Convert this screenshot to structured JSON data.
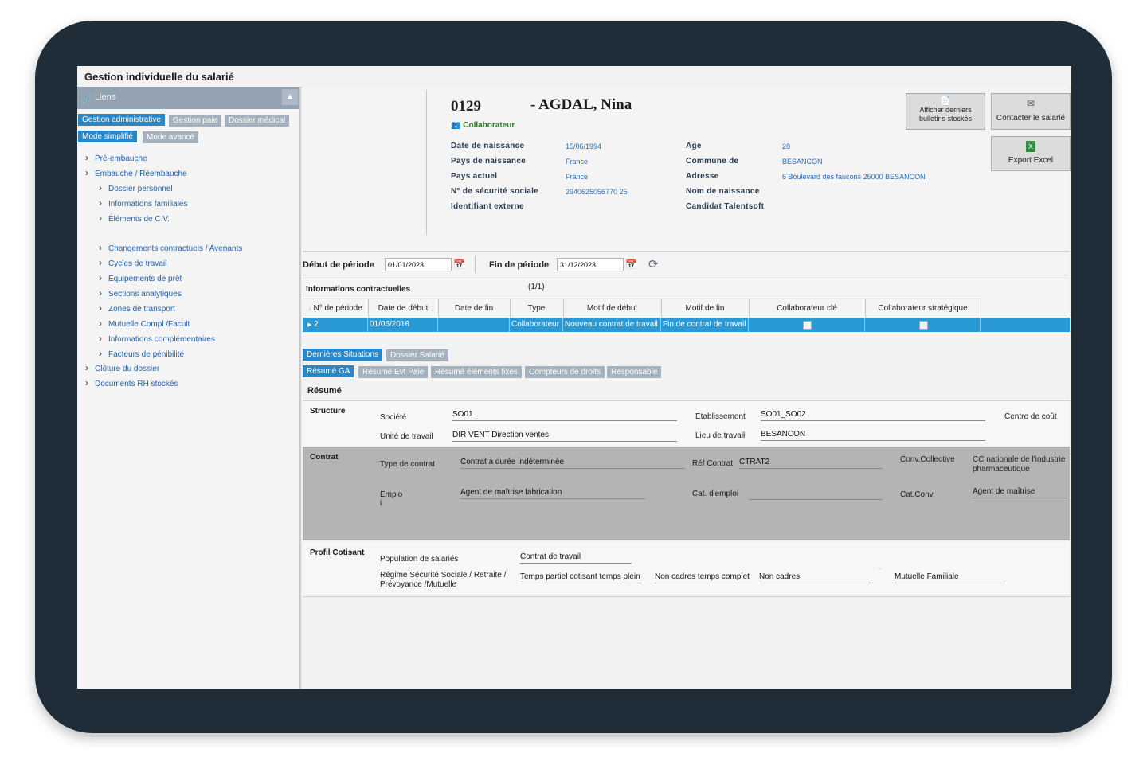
{
  "window": {
    "title": "Gestion individuelle du salarié"
  },
  "sidebar": {
    "header": "Liens",
    "tabs_row1": [
      "Gestion administrative",
      "Gestion paie",
      "Dossier médical"
    ],
    "tabs_row2": [
      "Mode simplifié",
      "Mode avancé"
    ],
    "items": [
      "Pré-embauche",
      "Embauche / Réembauche",
      "Dossier personnel",
      "Informations familiales",
      "Éléments de C.V.",
      "Changements contractuels / Avenants",
      "Cycles de travail",
      "Equipements de prêt",
      "Sections analytiques",
      "Zones de transport",
      "Mutuelle Compl /Facult",
      "Informations complémentaires",
      "Facteurs de pénibilité",
      "Clôture du dossier",
      "Documents RH stockés"
    ]
  },
  "employee": {
    "number": "0129",
    "name": "-  AGDAL, Nina",
    "role": "Collaborateur",
    "fields_left": [
      {
        "label": "Date de naissance",
        "value": "15/06/1994"
      },
      {
        "label": "Pays de naissance",
        "value": "France"
      },
      {
        "label": "Pays actuel",
        "value": "France"
      },
      {
        "label": "N° de sécurité sociale",
        "value": "2940625056770 25"
      },
      {
        "label": "Identifiant externe",
        "value": ""
      }
    ],
    "fields_right": [
      {
        "label": "Age",
        "value": "28"
      },
      {
        "label": "Commune de",
        "value": "BESANCON"
      },
      {
        "label": "Adresse",
        "value": "6 Boulevard des faucons 25000 BESANCON"
      },
      {
        "label": "Nom de naissance",
        "value": ""
      },
      {
        "label": "Candidat Talentsoft",
        "value": ""
      }
    ]
  },
  "actions": {
    "bulletins": "Afficher derniers bulletins stockés",
    "contact": "Contacter le salarié",
    "excel": "Export Excel"
  },
  "period": {
    "start_label": "Début de période",
    "start_value": "01/01/2023",
    "end_label": "Fin de période",
    "end_value": "31/12/2023"
  },
  "contract": {
    "title": "Informations contractuelles",
    "pager": "(1/1)",
    "columns": [
      "N° de période",
      "Date de début",
      "Date de fin",
      "Type",
      "Motif de début",
      "Motif de fin",
      "Collaborateur clé",
      "Collaborateur stratégique"
    ],
    "row": [
      "2",
      "01/06/2018",
      "",
      "Collaborateur",
      "Nouveau contrat de travail",
      "Fin de contrat de travail"
    ]
  },
  "tabs_main": [
    "Dernières Situations",
    "Dossier Salarié"
  ],
  "tabs_sub": [
    "Résumé GA",
    "Résumé Evt Paie",
    "Résumé éléments fixes",
    "Compteurs de droits",
    "Responsable"
  ],
  "resume": {
    "title": "Résumé",
    "structure": {
      "title": "Structure",
      "societe_label": "Société",
      "societe_value": "SO01",
      "etab_label": "Établissement",
      "etab_value": "SO01_SO02",
      "centre_label": "Centre de coût",
      "unite_label": "Unité de travail",
      "unite_value": "DIR VENT Direction ventes",
      "lieu_label": "Lieu de travail",
      "lieu_value": "BESANCON"
    },
    "contrat": {
      "title": "Contrat",
      "type_label": "Type de contrat",
      "type_value": "Contrat à durée indéterminée",
      "ref_label": "Réf Contrat",
      "ref_value": "CTRAT2",
      "conv_label": "Conv.Collective",
      "conv_value1": "CC nationale de l'industrie",
      "conv_value2": "pharmaceutique",
      "emploi_label": "Emplo",
      "emploi_label2": "i",
      "emploi_value": "Agent de maîtrise fabrication",
      "cat_label": "Cat. d'emploi",
      "catconv_label": "Cat.Conv.",
      "catconv_value": "Agent de maîtrise"
    },
    "profil": {
      "title": "Profil Cotisant",
      "pop_label": "Population de salariés",
      "pop_value": "Contrat de travail",
      "regime_label1": "Régime  Sécurité Sociale / Retraite /",
      "regime_label2": "Prévoyance /Mutuelle",
      "v1": "Temps partiel cotisant temps plein",
      "v2": "Non cadres temps complet",
      "v3": "Non cadres",
      "v4": "Mutuelle Familiale"
    }
  },
  "colors": {
    "accent": "#2a9ad6",
    "frame": "#1f2d38",
    "link": "#1f5fa8",
    "contrat_bg": "#b4b4b4"
  }
}
